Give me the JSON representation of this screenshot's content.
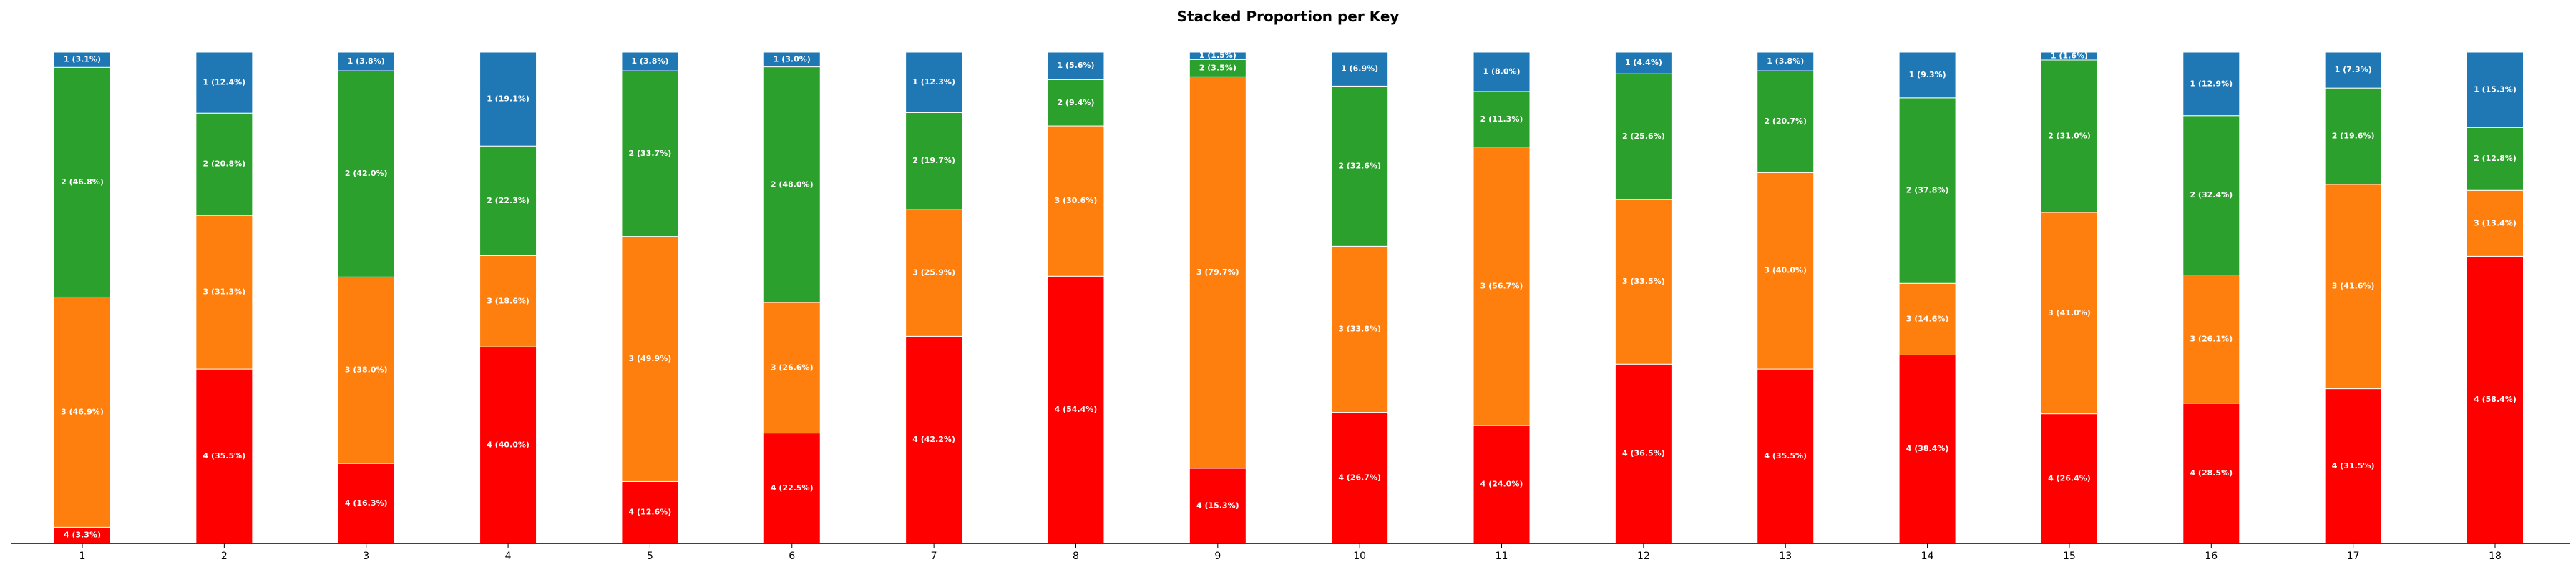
{
  "chart_data": {
    "type": "bar",
    "stacked": true,
    "title": "Stacked Proportion per Key",
    "xlabel": "",
    "ylabel": "",
    "ylim": [
      0,
      100
    ],
    "grid": false,
    "categories": [
      "1",
      "2",
      "3",
      "4",
      "5",
      "6",
      "7",
      "8",
      "9",
      "10",
      "11",
      "12",
      "13",
      "14",
      "15",
      "16",
      "17",
      "18"
    ],
    "stack_order_bottom_to_top": [
      "4",
      "3",
      "2",
      "1"
    ],
    "series": [
      {
        "key": "4",
        "color": "#ff0000",
        "values": [
          3.3,
          35.5,
          16.3,
          40.0,
          12.6,
          22.5,
          42.2,
          54.4,
          15.3,
          26.7,
          24.0,
          36.5,
          35.5,
          38.4,
          26.4,
          28.5,
          31.5,
          58.4
        ]
      },
      {
        "key": "3",
        "color": "#ff7f0e",
        "values": [
          46.9,
          31.3,
          38.0,
          18.6,
          49.9,
          26.6,
          25.9,
          30.6,
          79.7,
          33.8,
          56.7,
          33.5,
          40.0,
          14.6,
          41.0,
          26.1,
          41.6,
          13.4
        ]
      },
      {
        "key": "2",
        "color": "#2ca02c",
        "values": [
          46.8,
          20.8,
          42.0,
          22.3,
          33.7,
          48.0,
          19.7,
          9.4,
          3.5,
          32.6,
          11.3,
          25.6,
          20.7,
          37.8,
          31.0,
          32.4,
          19.6,
          12.8
        ]
      },
      {
        "key": "1",
        "color": "#1f77b4",
        "values": [
          3.1,
          12.4,
          3.8,
          19.1,
          3.8,
          3.0,
          12.3,
          5.6,
          1.5,
          6.9,
          8.0,
          4.4,
          3.8,
          9.3,
          1.6,
          12.9,
          7.3,
          15.3
        ]
      }
    ],
    "segment_labels": [
      [
        "4 (3.3%)",
        "3 (46.9%)",
        "2 (46.8%)",
        "1 (3.1%)"
      ],
      [
        "4 (35.5%)",
        "3 (31.3%)",
        "2 (20.8%)",
        "1 (12.4%)"
      ],
      [
        "4 (16.3%)",
        "3 (38.0%)",
        "2 (42.0%)",
        "1 (3.8%)"
      ],
      [
        "4 (40.0%)",
        "3 (18.6%)",
        "2 (22.3%)",
        "1 (19.1%)"
      ],
      [
        "4 (12.6%)",
        "3 (49.9%)",
        "2 (33.7%)",
        "1 (3.8%)"
      ],
      [
        "4 (22.5%)",
        "3 (26.6%)",
        "2 (48.0%)",
        "1 (3.0%)"
      ],
      [
        "4 (42.2%)",
        "3 (25.9%)",
        "2 (19.7%)",
        "1 (12.3%)"
      ],
      [
        "4 (54.4%)",
        "3 (30.6%)",
        "2 (9.4%)",
        "1 (5.6%)"
      ],
      [
        "4 (15.3%)",
        "3 (79.7%)",
        "2 (3.5%)",
        "1 (1.5%)"
      ],
      [
        "4 (26.7%)",
        "3 (33.8%)",
        "2 (32.6%)",
        "1 (6.9%)"
      ],
      [
        "4 (24.0%)",
        "3 (56.7%)",
        "2 (11.3%)",
        "1 (8.0%)"
      ],
      [
        "4 (36.5%)",
        "3 (33.5%)",
        "2 (25.6%)",
        "1 (4.4%)"
      ],
      [
        "4 (35.5%)",
        "3 (40.0%)",
        "2 (20.7%)",
        "1 (3.8%)"
      ],
      [
        "4 (38.4%)",
        "3 (14.6%)",
        "2 (37.8%)",
        "1 (9.3%)"
      ],
      [
        "4 (26.4%)",
        "3 (41.0%)",
        "2 (31.0%)",
        "1 (1.6%)"
      ],
      [
        "4 (28.5%)",
        "3 (26.1%)",
        "2 (32.4%)",
        "1 (12.9%)"
      ],
      [
        "4 (31.5%)",
        "3 (41.6%)",
        "2 (19.6%)",
        "1 (7.3%)"
      ],
      [
        "4 (58.4%)",
        "3 (13.4%)",
        "2 (12.8%)",
        "1 (15.3%)"
      ]
    ]
  }
}
